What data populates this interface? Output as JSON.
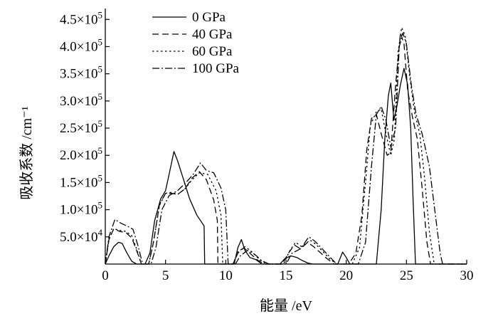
{
  "chart_data": {
    "type": "line",
    "xlabel": "能量 /eV",
    "ylabel": "吸收系数 /cm⁻¹",
    "xlim": [
      0,
      30
    ],
    "ylim": [
      0,
      470000
    ],
    "grid": false,
    "legend_position": "top-left",
    "x_ticks": [
      {
        "value": 0,
        "label": "0"
      },
      {
        "value": 5,
        "label": "5"
      },
      {
        "value": 10,
        "label": "10"
      },
      {
        "value": 15,
        "label": "15"
      },
      {
        "value": 20,
        "label": "20"
      },
      {
        "value": 25,
        "label": "25"
      },
      {
        "value": 30,
        "label": "30"
      }
    ],
    "y_ticks": [
      {
        "value": 50000,
        "mantissa": "5.0×10",
        "exp": "4"
      },
      {
        "value": 100000,
        "mantissa": "1.0×10",
        "exp": "5"
      },
      {
        "value": 150000,
        "mantissa": "1.5×10",
        "exp": "5"
      },
      {
        "value": 200000,
        "mantissa": "2.0×10",
        "exp": "5"
      },
      {
        "value": 250000,
        "mantissa": "2.5×10",
        "exp": "5"
      },
      {
        "value": 300000,
        "mantissa": "3.0×10",
        "exp": "5"
      },
      {
        "value": 350000,
        "mantissa": "3.5×10",
        "exp": "5"
      },
      {
        "value": 400000,
        "mantissa": "4.0×10",
        "exp": "5"
      },
      {
        "value": 450000,
        "mantissa": "4.5×10",
        "exp": "5"
      }
    ],
    "series": [
      {
        "name": "0 GPa",
        "dash": "solid",
        "points": [
          [
            0,
            0
          ],
          [
            0.3,
            15000
          ],
          [
            0.7,
            32000
          ],
          [
            1.1,
            40000
          ],
          [
            1.4,
            38000
          ],
          [
            1.8,
            20000
          ],
          [
            2.2,
            5000
          ],
          [
            2.6,
            0
          ],
          [
            3.3,
            0
          ],
          [
            3.7,
            20000
          ],
          [
            4.1,
            80000
          ],
          [
            4.6,
            120000
          ],
          [
            5.0,
            135000
          ],
          [
            5.3,
            165000
          ],
          [
            5.7,
            207000
          ],
          [
            6.0,
            190000
          ],
          [
            6.5,
            155000
          ],
          [
            7.0,
            120000
          ],
          [
            7.6,
            90000
          ],
          [
            8.2,
            70000
          ],
          [
            8.25,
            0
          ],
          [
            10.7,
            0
          ],
          [
            11.0,
            30000
          ],
          [
            11.3,
            45000
          ],
          [
            11.6,
            25000
          ],
          [
            12.0,
            12000
          ],
          [
            12.5,
            8000
          ],
          [
            13.0,
            0
          ],
          [
            14.5,
            0
          ],
          [
            14.9,
            10000
          ],
          [
            15.4,
            15000
          ],
          [
            15.9,
            12000
          ],
          [
            16.4,
            6000
          ],
          [
            16.8,
            2000
          ],
          [
            17.2,
            0
          ],
          [
            19.3,
            0
          ],
          [
            19.7,
            22000
          ],
          [
            20.0,
            12000
          ],
          [
            20.3,
            0
          ],
          [
            22.5,
            0
          ],
          [
            22.9,
            100000
          ],
          [
            23.2,
            230000
          ],
          [
            23.5,
            310000
          ],
          [
            23.7,
            333000
          ],
          [
            23.95,
            265000
          ],
          [
            24.2,
            290000
          ],
          [
            24.5,
            330000
          ],
          [
            24.8,
            360000
          ],
          [
            25.1,
            330000
          ],
          [
            25.35,
            250000
          ],
          [
            25.55,
            120000
          ],
          [
            25.75,
            0
          ],
          [
            30,
            0
          ]
        ]
      },
      {
        "name": "40 GPa",
        "dash": "9,5",
        "points": [
          [
            0,
            0
          ],
          [
            0.3,
            45000
          ],
          [
            0.7,
            65000
          ],
          [
            1.2,
            60000
          ],
          [
            1.7,
            58000
          ],
          [
            2.2,
            48000
          ],
          [
            2.6,
            25000
          ],
          [
            3.0,
            0
          ],
          [
            3.6,
            0
          ],
          [
            4.0,
            40000
          ],
          [
            4.5,
            110000
          ],
          [
            5.0,
            130000
          ],
          [
            5.5,
            130000
          ],
          [
            6.0,
            128000
          ],
          [
            6.6,
            138000
          ],
          [
            7.2,
            158000
          ],
          [
            7.8,
            170000
          ],
          [
            8.4,
            155000
          ],
          [
            9.0,
            118000
          ],
          [
            9.3,
            80000
          ],
          [
            9.35,
            0
          ],
          [
            10.6,
            0
          ],
          [
            11.0,
            20000
          ],
          [
            11.5,
            30000
          ],
          [
            12.0,
            20000
          ],
          [
            12.6,
            8000
          ],
          [
            13.2,
            0
          ],
          [
            14.7,
            0
          ],
          [
            15.2,
            20000
          ],
          [
            15.7,
            35000
          ],
          [
            16.2,
            28000
          ],
          [
            16.8,
            40000
          ],
          [
            17.3,
            32000
          ],
          [
            17.9,
            20000
          ],
          [
            18.4,
            10000
          ],
          [
            19.0,
            0
          ],
          [
            20.2,
            0
          ],
          [
            20.8,
            20000
          ],
          [
            21.3,
            90000
          ],
          [
            21.7,
            210000
          ],
          [
            22.1,
            268000
          ],
          [
            22.5,
            275000
          ],
          [
            22.9,
            240000
          ],
          [
            23.4,
            200000
          ],
          [
            23.7,
            205000
          ],
          [
            24.1,
            330000
          ],
          [
            24.5,
            425000
          ],
          [
            24.8,
            405000
          ],
          [
            25.1,
            320000
          ],
          [
            25.5,
            270000
          ],
          [
            25.9,
            230000
          ],
          [
            26.3,
            140000
          ],
          [
            26.7,
            40000
          ],
          [
            27.0,
            0
          ],
          [
            30,
            0
          ]
        ]
      },
      {
        "name": "60 GPa",
        "dash": "2.5,3.5",
        "points": [
          [
            0,
            0
          ],
          [
            0.3,
            45000
          ],
          [
            0.7,
            65000
          ],
          [
            1.2,
            62000
          ],
          [
            1.7,
            60000
          ],
          [
            2.2,
            52000
          ],
          [
            2.6,
            28000
          ],
          [
            3.0,
            0
          ],
          [
            3.6,
            0
          ],
          [
            4.0,
            40000
          ],
          [
            4.5,
            108000
          ],
          [
            5.0,
            130000
          ],
          [
            5.5,
            132000
          ],
          [
            6.0,
            128000
          ],
          [
            6.6,
            138000
          ],
          [
            7.2,
            155000
          ],
          [
            7.8,
            168000
          ],
          [
            8.5,
            165000
          ],
          [
            9.2,
            135000
          ],
          [
            9.6,
            90000
          ],
          [
            9.75,
            0
          ],
          [
            10.6,
            0
          ],
          [
            11.0,
            22000
          ],
          [
            11.6,
            32000
          ],
          [
            12.2,
            22000
          ],
          [
            12.8,
            8000
          ],
          [
            13.4,
            0
          ],
          [
            14.8,
            0
          ],
          [
            15.3,
            24000
          ],
          [
            15.8,
            40000
          ],
          [
            16.3,
            32000
          ],
          [
            17.0,
            44000
          ],
          [
            17.5,
            36000
          ],
          [
            18.1,
            22000
          ],
          [
            18.6,
            10000
          ],
          [
            19.2,
            0
          ],
          [
            20.5,
            0
          ],
          [
            21.1,
            30000
          ],
          [
            21.6,
            150000
          ],
          [
            22.0,
            255000
          ],
          [
            22.5,
            280000
          ],
          [
            22.9,
            285000
          ],
          [
            23.3,
            240000
          ],
          [
            23.7,
            200000
          ],
          [
            24.0,
            230000
          ],
          [
            24.3,
            390000
          ],
          [
            24.6,
            435000
          ],
          [
            24.9,
            420000
          ],
          [
            25.3,
            340000
          ],
          [
            25.7,
            275000
          ],
          [
            26.1,
            240000
          ],
          [
            26.5,
            160000
          ],
          [
            26.9,
            60000
          ],
          [
            27.3,
            0
          ],
          [
            30,
            0
          ]
        ]
      },
      {
        "name": "100 GPa",
        "dash": "10,3,2,3",
        "points": [
          [
            0,
            0
          ],
          [
            0.3,
            50000
          ],
          [
            0.8,
            82000
          ],
          [
            1.3,
            75000
          ],
          [
            1.8,
            70000
          ],
          [
            2.3,
            64000
          ],
          [
            2.7,
            35000
          ],
          [
            3.1,
            0
          ],
          [
            3.8,
            0
          ],
          [
            4.2,
            30000
          ],
          [
            4.7,
            100000
          ],
          [
            5.3,
            126000
          ],
          [
            6.0,
            135000
          ],
          [
            6.7,
            150000
          ],
          [
            7.3,
            165000
          ],
          [
            7.9,
            186000
          ],
          [
            8.4,
            172000
          ],
          [
            9.0,
            168000
          ],
          [
            9.6,
            140000
          ],
          [
            10.0,
            100000
          ],
          [
            10.2,
            0
          ],
          [
            10.8,
            0
          ],
          [
            11.2,
            15000
          ],
          [
            11.8,
            25000
          ],
          [
            12.4,
            18000
          ],
          [
            13.0,
            6000
          ],
          [
            13.6,
            0
          ],
          [
            15.0,
            0
          ],
          [
            15.5,
            20000
          ],
          [
            16.2,
            28000
          ],
          [
            16.9,
            50000
          ],
          [
            17.4,
            42000
          ],
          [
            18.0,
            28000
          ],
          [
            18.6,
            14000
          ],
          [
            19.2,
            0
          ],
          [
            21.0,
            0
          ],
          [
            21.6,
            40000
          ],
          [
            22.1,
            180000
          ],
          [
            22.5,
            275000
          ],
          [
            22.9,
            290000
          ],
          [
            23.3,
            265000
          ],
          [
            23.7,
            215000
          ],
          [
            24.1,
            250000
          ],
          [
            24.4,
            400000
          ],
          [
            24.7,
            425000
          ],
          [
            25.0,
            405000
          ],
          [
            25.4,
            330000
          ],
          [
            25.8,
            275000
          ],
          [
            26.3,
            240000
          ],
          [
            26.9,
            180000
          ],
          [
            27.4,
            90000
          ],
          [
            27.8,
            20000
          ],
          [
            28.0,
            0
          ],
          [
            30,
            0
          ]
        ]
      }
    ]
  }
}
